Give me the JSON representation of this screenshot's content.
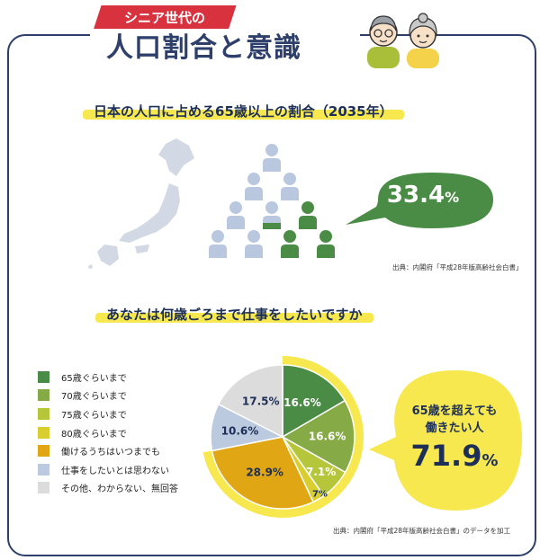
{
  "header": {
    "tab_label": "シニア世代の",
    "title": "人口割合と意識"
  },
  "section1": {
    "heading": "日本の人口に占める65歳以上の割合（2035年）",
    "stat_value": "33.4",
    "stat_unit": "%",
    "source": "出典：内閣府「平成28年版高齢社会白書」"
  },
  "section2": {
    "heading": "あなたは何歳ごろまで仕事をしたいですか",
    "callout_line1": "65歳を超えても",
    "callout_line2": "働きたい人",
    "callout_value": "71.9",
    "callout_unit": "%",
    "source": "出典：内閣府「平成28年版高齢社会白書」のデータを加工"
  },
  "colors": {
    "accent_red": "#d8323f",
    "navy": "#2d3f6a",
    "green_dark": "#4a8c46",
    "people_blue": "#b9c8df",
    "highlight_yellow": "#f6e84e"
  },
  "chart_data": {
    "type": "pie",
    "legend_position": "left",
    "slices": [
      {
        "name": "65歳ぐらいまで",
        "value": 16.6,
        "label": "16.6%",
        "color": "#4a8c46"
      },
      {
        "name": "70歳ぐらいまで",
        "value": 16.6,
        "label": "16.6%",
        "color": "#86aa45"
      },
      {
        "name": "75歳ぐらいまで",
        "value": 7.1,
        "label": "7.1%",
        "color": "#b6c63a"
      },
      {
        "name": "80歳ぐらいまで",
        "value": 2.7,
        "label": "2.7%",
        "color": "#d8cf2e"
      },
      {
        "name": "働けるうちはいつまでも",
        "value": 28.9,
        "label": "28.9%",
        "color": "#e0a613"
      },
      {
        "name": "仕事をしたいとは思わない",
        "value": 10.6,
        "label": "10.6%",
        "color": "#bccae0"
      },
      {
        "name": "その他、わからない、無回答",
        "value": 17.5,
        "label": "17.5%",
        "color": "#dcdcdc"
      }
    ],
    "highlighted_total": "71.9%"
  }
}
